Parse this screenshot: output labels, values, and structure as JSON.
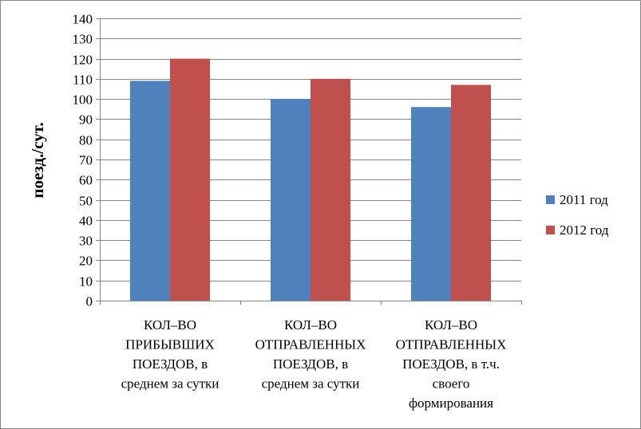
{
  "chart_data": {
    "type": "bar",
    "title": "",
    "xlabel": "",
    "ylabel": "поезд./сут.",
    "ylim": [
      0,
      140
    ],
    "ytick_step": 10,
    "grid": true,
    "legend_position": "right",
    "categories": [
      [
        "КОЛ–ВО",
        "ПРИБЫВШИХ",
        "ПОЕЗДОВ, в",
        "среднем за сутки"
      ],
      [
        "КОЛ–ВО",
        "ОТПРАВЛЕННЫХ",
        "ПОЕЗДОВ, в",
        "среднем за сутки"
      ],
      [
        "КОЛ–ВО",
        "ОТПРАВЛЕННЫХ",
        "ПОЕЗДОВ, в т.ч.",
        "своего",
        "формирования"
      ]
    ],
    "series": [
      {
        "name": "2011 год",
        "color": "#4f81bd",
        "values": [
          109,
          100,
          96
        ]
      },
      {
        "name": "2012 год",
        "color": "#c0504d",
        "values": [
          120,
          110,
          107
        ]
      }
    ]
  }
}
